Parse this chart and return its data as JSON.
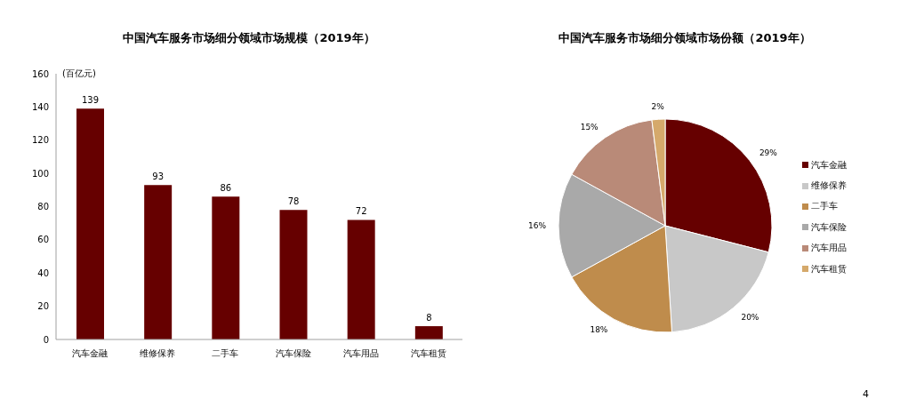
{
  "chart_data": [
    {
      "type": "bar",
      "title": "中国汽车服务市场细分领域市场规模（2019年）",
      "ylabel": "(百亿元)",
      "categories": [
        "汽车金融",
        "维修保养",
        "二手车",
        "汽车保险",
        "汽车用品",
        "汽车租赁"
      ],
      "values": [
        139,
        93,
        86,
        78,
        72,
        8
      ],
      "color": "#660000",
      "ylim": [
        0,
        160
      ],
      "yticks": [
        0,
        20,
        40,
        60,
        80,
        100,
        120,
        140,
        160
      ],
      "data_labels": true
    },
    {
      "type": "pie",
      "title": "中国汽车服务市场细分领域市场份额（2019年）",
      "categories": [
        "汽车金融",
        "维修保养",
        "二手车",
        "汽车保险",
        "汽车用品",
        "汽车租赁"
      ],
      "values": [
        29,
        20,
        18,
        16,
        15,
        2
      ],
      "colors": [
        "#660000",
        "#c8c8c8",
        "#bf8c4c",
        "#a9a9a9",
        "#b98a78",
        "#d5a96b"
      ],
      "value_labels": [
        "29%",
        "20%",
        "18%",
        "16%",
        "15%",
        "2%"
      ],
      "legend": "right",
      "annotations": [
        "4"
      ]
    }
  ]
}
